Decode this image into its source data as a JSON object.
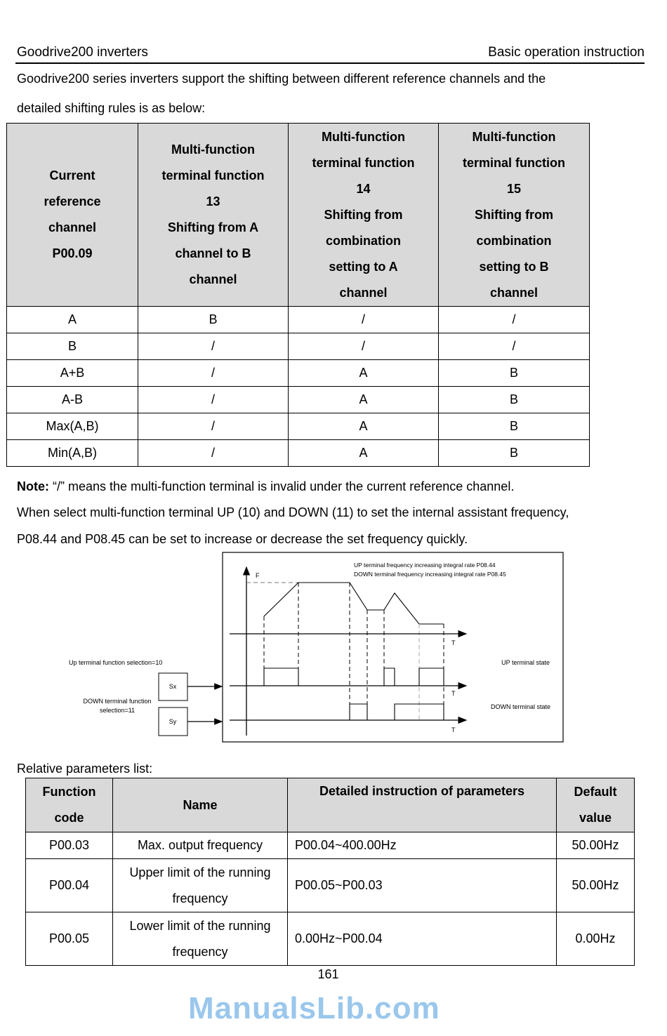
{
  "header": {
    "left": "Goodrive200 inverters",
    "right": "Basic operation instruction"
  },
  "intro": [
    "Goodrive200 series inverters support the shifting between different reference channels and the",
    "detailed shifting rules is as below:"
  ],
  "shift_table": {
    "headers": [
      [
        "Current",
        "reference",
        "channel",
        "P00.09"
      ],
      [
        "Multi-function",
        "terminal function",
        "13",
        "Shifting from A",
        "channel to B",
        "channel"
      ],
      [
        "Multi-function",
        "terminal function",
        "14",
        "Shifting from",
        "combination",
        "setting to A",
        "channel"
      ],
      [
        "Multi-function",
        "terminal function",
        "15",
        "Shifting from",
        "combination",
        "setting to B",
        "channel"
      ]
    ],
    "rows": [
      [
        "A",
        "B",
        "/",
        "/"
      ],
      [
        "B",
        "/",
        "/",
        "/"
      ],
      [
        "A+B",
        "/",
        "A",
        "B"
      ],
      [
        "A-B",
        "/",
        "A",
        "B"
      ],
      [
        "Max(A,B)",
        "/",
        "A",
        "B"
      ],
      [
        "Min(A,B)",
        "/",
        "A",
        "B"
      ]
    ]
  },
  "note": {
    "label": "Note:",
    "text": " “/” means the multi-function terminal is invalid under the current reference channel."
  },
  "watermark": "ManualsLib.com",
  "updown_text": [
    "When select multi-function terminal UP (10) and DOWN (11) to set the internal assistant frequency,",
    "P08.44 and P08.45 can be set to increase or decrease the set frequency quickly."
  ],
  "diagram": {
    "rate_up": "UP terminal frequency increasing integral rate  P08.44",
    "rate_down": "DOWN terminal frequency increasing integral rate  P08.45",
    "f_label": "F",
    "t_label": "T",
    "up_selection": "Up terminal function selection=10",
    "down_selection_1": "DOWN terminal function",
    "down_selection_2": "selection=11",
    "sx": "Sx",
    "sy": "Sy",
    "up_state": "UP terminal state",
    "down_state": "DOWN terminal state"
  },
  "params_title": "Relative parameters list:",
  "params_table": {
    "headers": [
      [
        "Function",
        "code"
      ],
      [
        "Name"
      ],
      [
        "Detailed instruction of parameters"
      ],
      [
        "Default",
        "value"
      ]
    ],
    "rows": [
      {
        "code": "P00.03",
        "name": [
          "Max. output frequency"
        ],
        "detail": "P00.04~400.00Hz",
        "default": "50.00Hz"
      },
      {
        "code": "P00.04",
        "name": [
          "Upper limit of the running",
          "frequency"
        ],
        "detail": "P00.05~P00.03",
        "default": "50.00Hz"
      },
      {
        "code": "P00.05",
        "name": [
          "Lower limit of the running",
          "frequency"
        ],
        "detail": "0.00Hz~P00.04",
        "default": "0.00Hz"
      }
    ]
  },
  "page_number": "161"
}
